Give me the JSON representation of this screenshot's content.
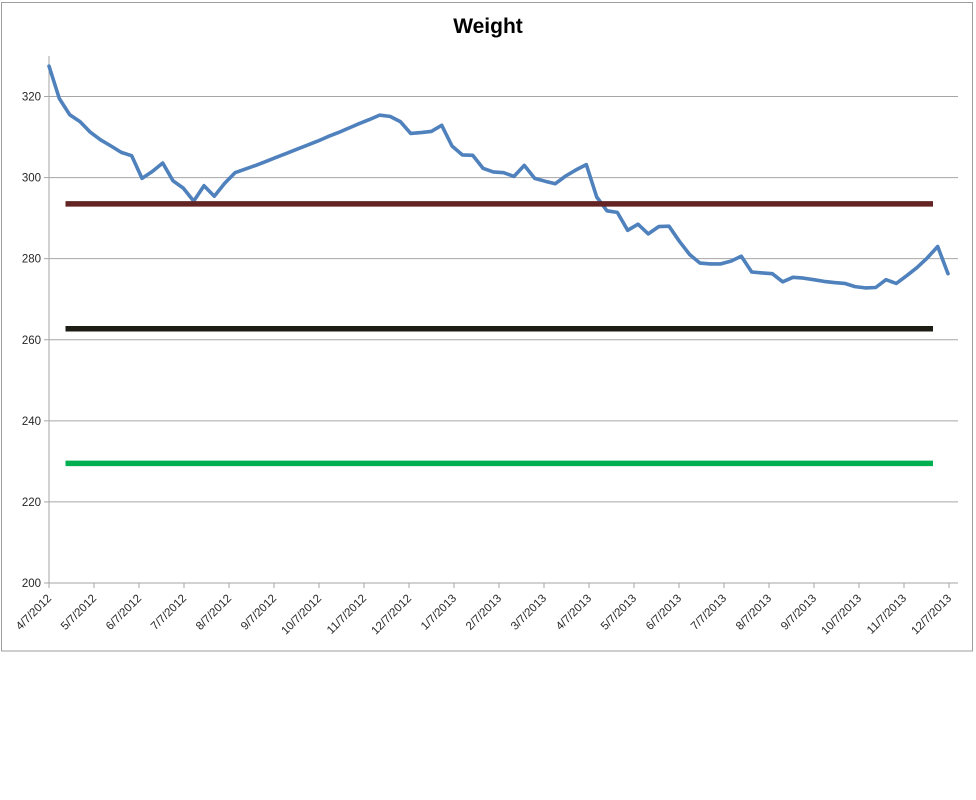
{
  "window": {
    "background": "#ffffff",
    "frame_border_color": "#9e9e9e"
  },
  "colors": {
    "weight_line": "#4f81bd",
    "upper_goal_line": "#632423",
    "middle_goal_line": "#1d1c15",
    "lower_goal_line": "#00b050",
    "gridline": "#a6a6a6",
    "axis": "#a6a6a6",
    "tick_text": "#262626",
    "title_text": "#000000"
  },
  "chart_data": {
    "type": "line",
    "title": "Weight",
    "xlabel": "",
    "ylabel": "",
    "grid": true,
    "legend": "none",
    "ylim": [
      200,
      330
    ],
    "y_ticks": [
      200,
      220,
      240,
      260,
      280,
      300,
      320
    ],
    "x_tick_labels": [
      "4/7/2012",
      "5/7/2012",
      "6/7/2012",
      "7/7/2012",
      "8/7/2012",
      "9/7/2012",
      "10/7/2012",
      "11/7/2012",
      "12/7/2012",
      "1/7/2013",
      "2/7/2013",
      "3/7/2013",
      "4/7/2013",
      "5/7/2013",
      "6/7/2013",
      "7/7/2013",
      "8/7/2013",
      "9/7/2013",
      "10/7/2013",
      "11/7/2013",
      "12/7/2013"
    ],
    "x_start_label": "4/7/2012",
    "x_end_label": "12/7/2013",
    "series": [
      {
        "name": "weight",
        "type": "line",
        "color": "#4f81bd",
        "stroke_width": 3.6,
        "points": 88,
        "values": [
          327.5,
          319.5,
          315.5,
          313.8,
          311.2,
          309.3,
          307.8,
          306.2,
          305.4,
          299.8,
          301.5,
          303.6,
          299.2,
          297.4,
          294.2,
          298.0,
          295.4,
          298.6,
          301.2,
          302.1,
          303.0,
          304.0,
          305.0,
          306.0,
          307.0,
          308.0,
          309.0,
          310.1,
          311.1,
          312.2,
          313.3,
          314.3,
          315.4,
          315.1,
          313.8,
          310.9,
          311.1,
          311.4,
          312.9,
          307.8,
          305.6,
          305.5,
          302.3,
          301.4,
          301.2,
          300.3,
          303.0,
          299.8,
          299.1,
          298.5,
          300.4,
          301.9,
          303.2,
          295.2,
          291.8,
          291.4,
          287.0,
          288.5,
          286.1,
          287.9,
          288.0,
          284.3,
          281.0,
          278.9,
          278.7,
          278.7,
          279.4,
          280.6,
          276.7,
          276.5,
          276.3,
          274.3,
          275.4,
          275.2,
          274.8,
          274.4,
          274.1,
          273.9,
          273.1,
          272.8,
          272.9,
          274.8,
          273.9,
          275.8,
          277.8,
          280.2,
          283.0,
          276.3
        ]
      },
      {
        "name": "upper-goal-line",
        "type": "constant",
        "color": "#632423",
        "stroke_width": 5.5,
        "value": 293.5
      },
      {
        "name": "middle-goal-line",
        "type": "constant",
        "color": "#1d1c15",
        "stroke_width": 5.5,
        "value": 262.7
      },
      {
        "name": "lower-goal-line",
        "type": "constant",
        "color": "#00b050",
        "stroke_width": 5.5,
        "value": 229.5
      }
    ]
  }
}
